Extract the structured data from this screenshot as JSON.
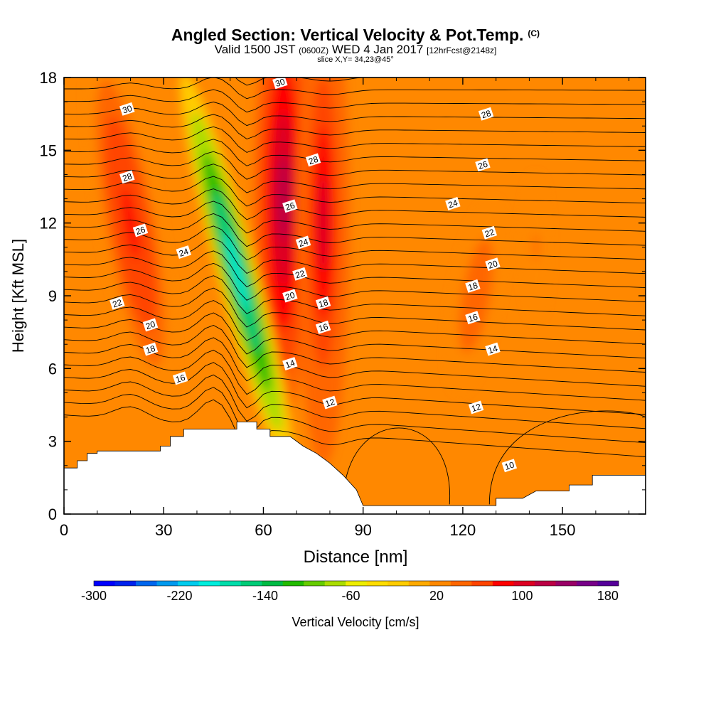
{
  "chart_data": {
    "type": "heatmap",
    "title": "Angled Section: Vertical Velocity & Pot.Temp.",
    "title_unit": "(C)",
    "subtitle": {
      "valid_prefix": "Valid 1500 JST",
      "utc": "(0600Z)",
      "date": "WED 4 Jan 2017",
      "forecast": "[12hrFcst@2148z]"
    },
    "slice_info": "slice X,Y= 34,23@45°",
    "xlabel": "Distance [nm]",
    "ylabel": "Height [Kft MSL]",
    "xlim": [
      0,
      175
    ],
    "ylim": [
      0,
      18
    ],
    "xticks": [
      0,
      30,
      60,
      90,
      120,
      150
    ],
    "yticks": [
      0,
      3,
      6,
      9,
      12,
      15,
      18
    ],
    "grid": false,
    "colorbar": {
      "label": "Vertical Velocity [cm/s]",
      "tick_labels": [
        "-300",
        "-220",
        "-140",
        "-60",
        "20",
        "100",
        "180"
      ],
      "min": -300,
      "max": 190,
      "colors": [
        "#0000ff",
        "#0022ee",
        "#0066ee",
        "#0099ee",
        "#00ccee",
        "#00eedd",
        "#00ddaa",
        "#00cc77",
        "#00bb44",
        "#22bb00",
        "#66cc00",
        "#aadd00",
        "#eeee00",
        "#ffdd00",
        "#ffcc00",
        "#ffaa00",
        "#ff8800",
        "#ff6600",
        "#ff4400",
        "#ff0000",
        "#dd0022",
        "#bb0044",
        "#990066",
        "#770088",
        "#550099"
      ]
    },
    "velocity_features": [
      {
        "kind": "updraft",
        "x": 20,
        "y": 12,
        "value": 90
      },
      {
        "kind": "updraft",
        "x": 66,
        "y": 13,
        "value": 130
      },
      {
        "kind": "updraft",
        "x": 78,
        "y": 12,
        "value": 110
      },
      {
        "kind": "downdraft",
        "x": 52,
        "y": 10,
        "value": -190
      },
      {
        "kind": "updraft",
        "x": 124,
        "y": 9,
        "value": 50
      },
      {
        "kind": "updraft",
        "x": 142,
        "y": 11,
        "value": 40
      }
    ],
    "terrain": [
      [
        0,
        1.9
      ],
      [
        4,
        1.9
      ],
      [
        4,
        2.2
      ],
      [
        7,
        2.2
      ],
      [
        7,
        2.5
      ],
      [
        10,
        2.5
      ],
      [
        10,
        2.6
      ],
      [
        29,
        2.6
      ],
      [
        29,
        2.8
      ],
      [
        32,
        2.8
      ],
      [
        32,
        3.2
      ],
      [
        36,
        3.2
      ],
      [
        36,
        3.5
      ],
      [
        52,
        3.5
      ],
      [
        52,
        3.8
      ],
      [
        58,
        3.8
      ],
      [
        58,
        3.5
      ],
      [
        62,
        3.5
      ],
      [
        62,
        3.2
      ],
      [
        68,
        3.2
      ],
      [
        72,
        2.8
      ],
      [
        76,
        2.5
      ],
      [
        80,
        2.1
      ],
      [
        84,
        1.6
      ],
      [
        88,
        1.0
      ],
      [
        90,
        0.35
      ],
      [
        130,
        0.35
      ],
      [
        130,
        0.65
      ],
      [
        138,
        0.65
      ],
      [
        142,
        0.95
      ],
      [
        152,
        0.95
      ],
      [
        152,
        1.2
      ],
      [
        159,
        1.2
      ],
      [
        159,
        1.6
      ],
      [
        175,
        1.6
      ],
      [
        175,
        0
      ],
      [
        0,
        0
      ]
    ],
    "isentrope_labels": [
      {
        "x": 19,
        "y": 16.7,
        "text": "30"
      },
      {
        "x": 65,
        "y": 17.8,
        "text": "30"
      },
      {
        "x": 127,
        "y": 16.5,
        "text": "28"
      },
      {
        "x": 19,
        "y": 13.9,
        "text": "28"
      },
      {
        "x": 75,
        "y": 14.6,
        "text": "28"
      },
      {
        "x": 126,
        "y": 14.4,
        "text": "26"
      },
      {
        "x": 23,
        "y": 11.7,
        "text": "26"
      },
      {
        "x": 68,
        "y": 12.7,
        "text": "26"
      },
      {
        "x": 117,
        "y": 12.8,
        "text": "24"
      },
      {
        "x": 36,
        "y": 10.8,
        "text": "24"
      },
      {
        "x": 72,
        "y": 11.2,
        "text": "24"
      },
      {
        "x": 128,
        "y": 11.6,
        "text": "22"
      },
      {
        "x": 16,
        "y": 8.7,
        "text": "22"
      },
      {
        "x": 71,
        "y": 9.9,
        "text": "22"
      },
      {
        "x": 129,
        "y": 10.3,
        "text": "20"
      },
      {
        "x": 26,
        "y": 7.8,
        "text": "20"
      },
      {
        "x": 68,
        "y": 9.0,
        "text": "20"
      },
      {
        "x": 123,
        "y": 9.4,
        "text": "18"
      },
      {
        "x": 26,
        "y": 6.8,
        "text": "18"
      },
      {
        "x": 78,
        "y": 8.7,
        "text": "18"
      },
      {
        "x": 123,
        "y": 8.1,
        "text": "16"
      },
      {
        "x": 35,
        "y": 5.6,
        "text": "16"
      },
      {
        "x": 78,
        "y": 7.7,
        "text": "16"
      },
      {
        "x": 129,
        "y": 6.8,
        "text": "14"
      },
      {
        "x": 68,
        "y": 6.2,
        "text": "14"
      },
      {
        "x": 80,
        "y": 4.6,
        "text": "12"
      },
      {
        "x": 124,
        "y": 4.4,
        "text": "12"
      },
      {
        "x": 134,
        "y": 2.0,
        "text": "10"
      }
    ]
  }
}
